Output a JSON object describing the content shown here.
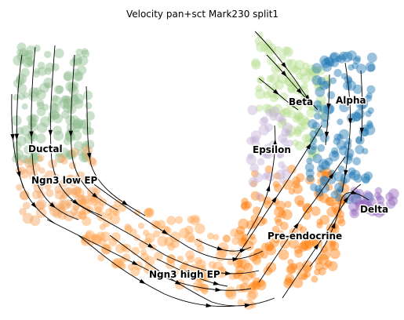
{
  "title": "Velocity pan+sct Mark230 split1",
  "colors": {
    "Ductal": "#8fbc8f",
    "Ngn3 low EP": "#f4a460",
    "Ngn3 high EP": "#ffa54f",
    "Pre-endocrine": "#ff7f0e",
    "Beta": "#b5dd8f",
    "Alpha": "#1f77b4",
    "Epsilon": "#c6b3d8",
    "Delta": "#9467bd"
  },
  "clusters": [
    {
      "id": "ductal",
      "label": "Ductal"
    },
    {
      "id": "ngn3-low-ep",
      "label": "Ngn3 low EP"
    },
    {
      "id": "ngn3-high-ep",
      "label": "Ngn3 high EP"
    },
    {
      "id": "pre-endocrine",
      "label": "Pre-endocrine"
    },
    {
      "id": "beta",
      "label": "Beta"
    },
    {
      "id": "alpha",
      "label": "Alpha"
    },
    {
      "id": "epsilon",
      "label": "Epsilon"
    },
    {
      "id": "delta",
      "label": "Delta"
    }
  ]
}
